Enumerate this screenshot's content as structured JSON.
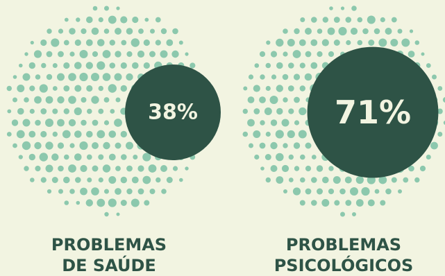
{
  "chart_data": {
    "type": "bubble",
    "unit": "%",
    "items": [
      {
        "value": 38,
        "value_label": "38%",
        "label_lines": [
          "PROBLEMAS",
          "DE SAÚDE"
        ]
      },
      {
        "value": 71,
        "value_label": "71%",
        "label_lines": [
          "PROBLEMAS",
          "PSICOLÓGICOS"
        ]
      }
    ]
  },
  "colors": {
    "background": "#f2f4e1",
    "dots": "#8cc8ad",
    "bubble": "#2e5346",
    "bubble_text": "#f2f4e1",
    "label": "#2e5346"
  }
}
